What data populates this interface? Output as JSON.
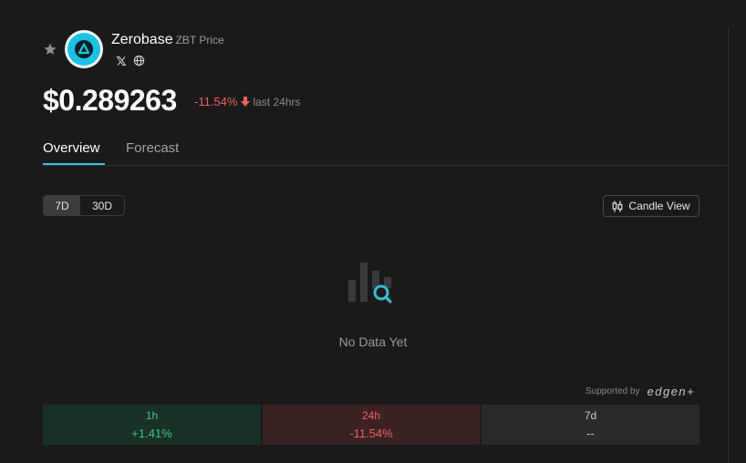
{
  "coin": {
    "name": "Zerobase",
    "symbol_label": "ZBT Price",
    "price": "$0.289263",
    "change": "-11.54%",
    "change_period": "last 24hrs"
  },
  "tabs": [
    {
      "label": "Overview",
      "active": true
    },
    {
      "label": "Forecast",
      "active": false
    }
  ],
  "range": {
    "options": [
      "7D",
      "30D"
    ],
    "selected": "7D"
  },
  "candle_view_label": "Candle View",
  "empty_state": "No Data Yet",
  "supported_by": {
    "label": "Supported by",
    "brand": "edgen+"
  },
  "performance": [
    {
      "label": "1h",
      "value": "+1.41%"
    },
    {
      "label": "24h",
      "value": "-11.54%"
    },
    {
      "label": "7d",
      "value": "--"
    }
  ],
  "colors": {
    "background": "#1a1a1b",
    "accent": "#2fc8d9",
    "positive": "#3ec986",
    "negative": "#f0605d"
  }
}
